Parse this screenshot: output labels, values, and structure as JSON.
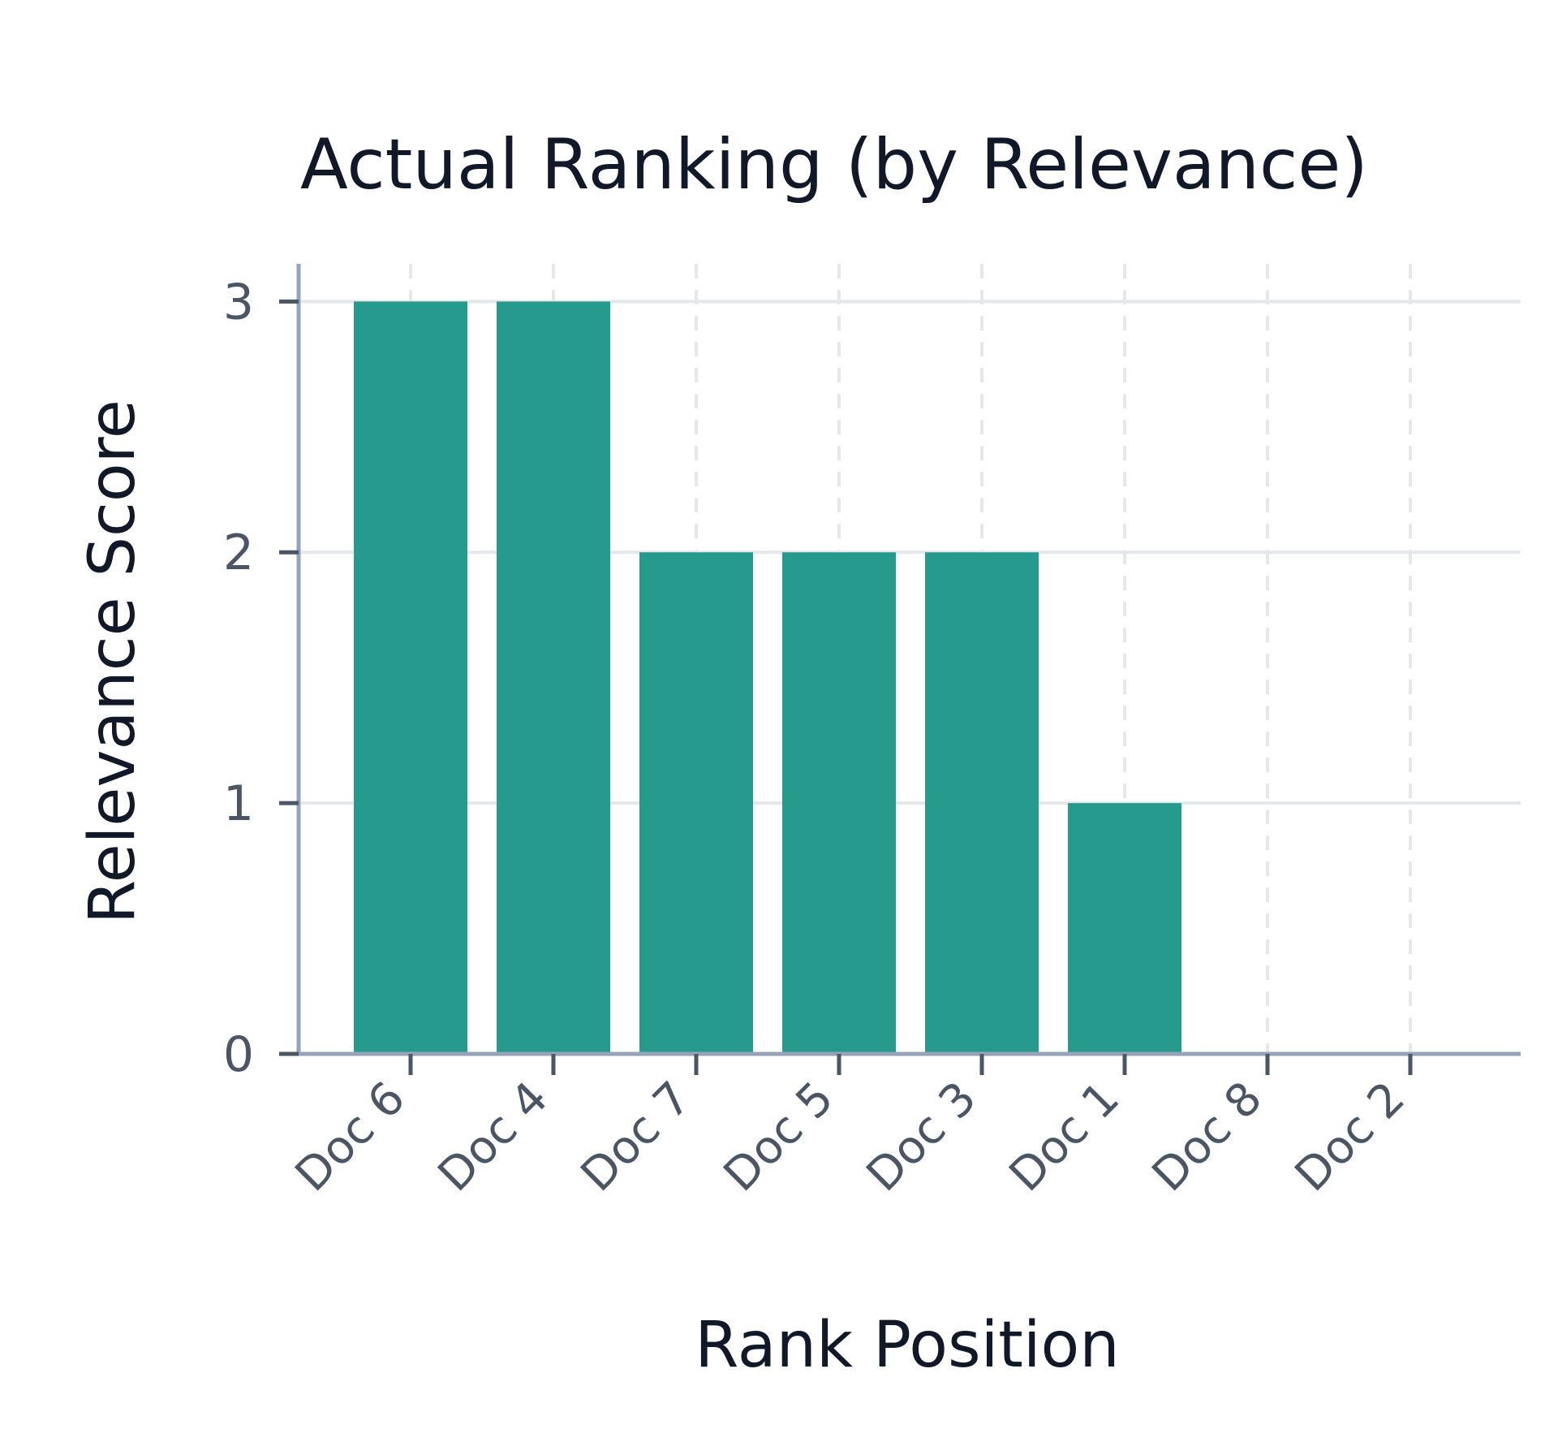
{
  "chart_data": {
    "type": "bar",
    "title": "Actual Ranking (by Relevance)",
    "xlabel": "Rank Position",
    "ylabel": "Relevance Score",
    "categories": [
      "Doc 6",
      "Doc 4",
      "Doc 7",
      "Doc 5",
      "Doc 3",
      "Doc 1",
      "Doc 8",
      "Doc 2"
    ],
    "values": [
      3,
      3,
      2,
      2,
      2,
      1,
      0,
      0
    ],
    "ylim": [
      0,
      3.15
    ],
    "yticks": [
      0,
      1,
      2,
      3
    ],
    "grid": true,
    "bar_color": "#269b8d"
  }
}
